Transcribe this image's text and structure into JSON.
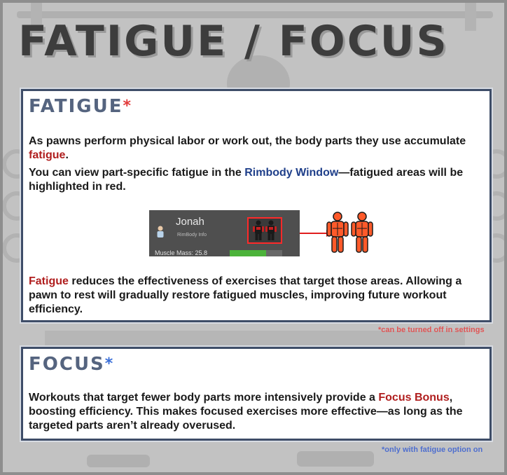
{
  "title": "FATIGUE / FOCUS",
  "fatigue": {
    "heading": "FATIGUE",
    "asterisk": "*",
    "p1_before": "As pawns perform physical labor or work out, the body parts they use accumulate ",
    "p1_highlight": "fatigue",
    "p1_after": ".",
    "p2_before": "You can view part-specific fatigue in the ",
    "p2_highlight": "Rimbody Window",
    "p2_after": "—fatigued areas will be highlighted in red.",
    "p3_highlight": "Fatigue",
    "p3_after": " reduces the effectiveness of exercises that target those areas. Allowing a pawn to rest will gradually restore fatigued muscles, improving future workout efficiency.",
    "note": "*can be turned off in settings",
    "mock": {
      "name": "Jonah",
      "subtitle": "RimBody Info",
      "mass_label": "Muscle Mass:  25.8"
    }
  },
  "focus": {
    "heading": "FOCUS",
    "asterisk": "*",
    "p1_before": "Workouts that target fewer body parts more intensively provide a ",
    "p1_highlight": "Focus Bonus",
    "p1_after": ", boosting efficiency. This makes focused exercises more effective—as long as the targeted parts aren’t already overused.",
    "note": "*only with fatigue option on"
  },
  "colors": {
    "highlight_red": "#b01e1e",
    "highlight_blue": "#1f3f8a",
    "panel_border": "#3e4d68",
    "heading": "#55647f",
    "fatigue_body": "#ff5a2a"
  }
}
